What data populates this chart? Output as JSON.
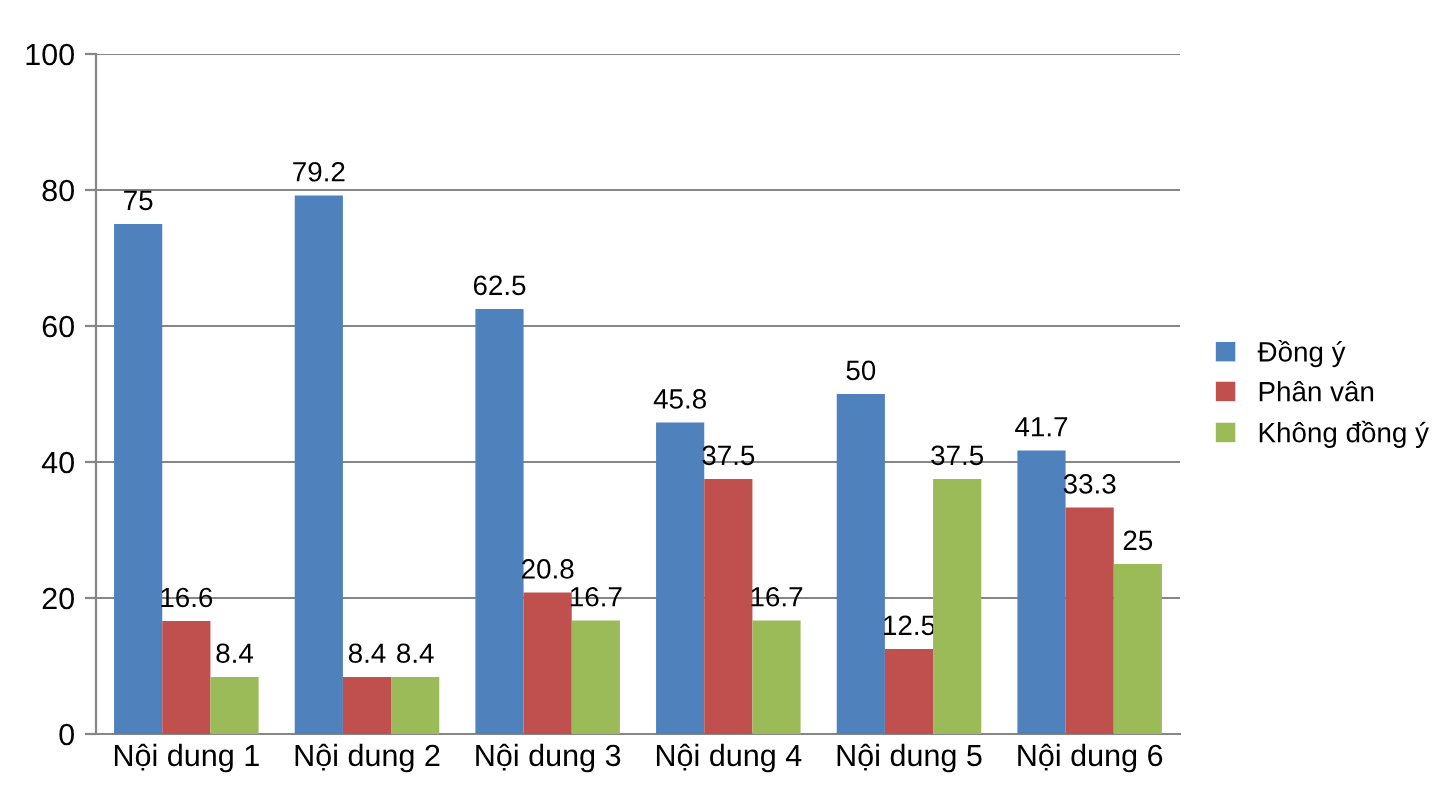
{
  "chart_data": {
    "type": "bar",
    "categories": [
      "Nội dung 1",
      "Nội dung 2",
      "Nội dung 3",
      "Nội dung 4",
      "Nội dung 5",
      "Nội dung 6"
    ],
    "series": [
      {
        "name": "Đồng ý",
        "color": "#4f81bd",
        "values": [
          75,
          79.2,
          62.5,
          45.8,
          50,
          41.7
        ]
      },
      {
        "name": "Phân vân",
        "color": "#c0504d",
        "values": [
          16.6,
          8.4,
          20.8,
          37.5,
          12.5,
          33.3
        ]
      },
      {
        "name": "Không đồng ý",
        "color": "#9bbb59",
        "values": [
          8.4,
          8.4,
          16.7,
          16.7,
          37.5,
          25
        ]
      }
    ],
    "ylim": [
      0,
      100
    ],
    "yticks": [
      0,
      20,
      40,
      60,
      80,
      100
    ],
    "grid": "y",
    "legend": "right",
    "data_labels": true
  }
}
